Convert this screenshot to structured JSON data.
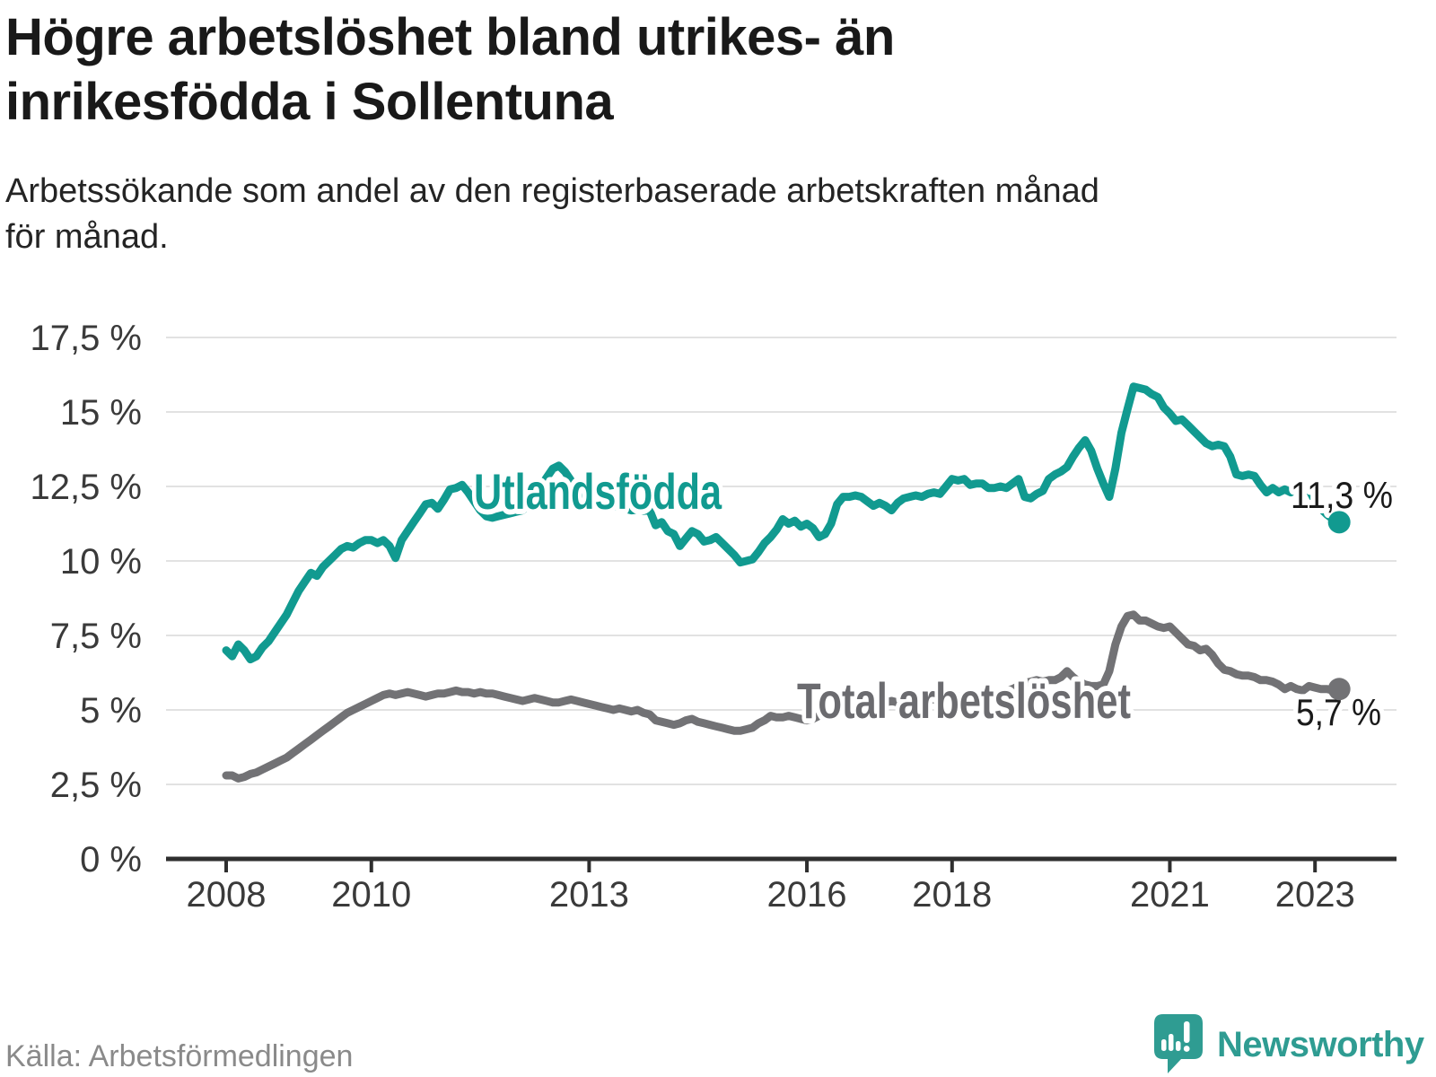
{
  "header": {
    "title_lines": [
      "Högre arbetslöshet bland utrikes- än",
      "inrikesfödda i Sollentuna"
    ],
    "subtitle_lines": [
      "Arbetssökande som andel av den registerbaserade arbetskraften månad",
      "för månad."
    ]
  },
  "footer": {
    "source": "Källa: Arbetsförmedlingen",
    "logo_text": "Newsworthy"
  },
  "chart_data": {
    "type": "line",
    "title": "Högre arbetslöshet bland utrikes- än inrikesfödda i Sollentuna",
    "subtitle": "Arbetssökande som andel av den registerbaserade arbetskraften månad för månad.",
    "source": "Källa: Arbetsförmedlingen",
    "unit": "%",
    "frequency": "monthly",
    "x_start": "2008-01",
    "x_end": "2023-05",
    "ylim": [
      0,
      17.5
    ],
    "grid": true,
    "legend_position": "inline-labels",
    "y_ticks": [
      {
        "value": 0,
        "label": "0 %"
      },
      {
        "value": 2.5,
        "label": "2,5 %"
      },
      {
        "value": 5,
        "label": "5 %"
      },
      {
        "value": 7.5,
        "label": "7,5 %"
      },
      {
        "value": 10,
        "label": "10 %"
      },
      {
        "value": 12.5,
        "label": "12,5 %"
      },
      {
        "value": 15,
        "label": "15 %"
      },
      {
        "value": 17.5,
        "label": "17,5 %"
      }
    ],
    "x_ticks": [
      {
        "year": 2008,
        "label": "2008"
      },
      {
        "year": 2010,
        "label": "2010"
      },
      {
        "year": 2013,
        "label": "2013"
      },
      {
        "year": 2016,
        "label": "2016"
      },
      {
        "year": 2018,
        "label": "2018"
      },
      {
        "year": 2021,
        "label": "2021"
      },
      {
        "year": 2023,
        "label": "2023"
      }
    ],
    "series": [
      {
        "name": "Utlandsfödda",
        "slug": "utlandsfodda",
        "color": "#119a90",
        "label_color": "#119a90",
        "end_value": 11.3,
        "end_label": "11,3 %",
        "values": [
          7.0,
          6.8,
          7.2,
          7.0,
          6.7,
          6.8,
          7.1,
          7.3,
          7.6,
          7.9,
          8.2,
          8.6,
          9.0,
          9.3,
          9.6,
          9.5,
          9.8,
          10.0,
          10.2,
          10.4,
          10.5,
          10.45,
          10.6,
          10.7,
          10.7,
          10.6,
          10.7,
          10.5,
          10.1,
          10.7,
          11.0,
          11.3,
          11.6,
          11.9,
          11.95,
          11.75,
          12.05,
          12.4,
          12.45,
          12.55,
          12.3,
          12.0,
          11.7,
          11.5,
          11.45,
          11.5,
          11.55,
          11.6,
          11.65,
          11.7,
          11.9,
          12.2,
          12.5,
          12.8,
          13.1,
          13.2,
          13.0,
          12.7,
          12.45,
          12.25,
          12.1,
          12.0,
          11.95,
          11.9,
          11.85,
          11.8,
          11.75,
          11.7,
          11.72,
          11.68,
          11.7,
          11.2,
          11.3,
          11.0,
          10.9,
          10.5,
          10.75,
          11.0,
          10.9,
          10.65,
          10.7,
          10.8,
          10.6,
          10.4,
          10.2,
          9.95,
          10.0,
          10.05,
          10.3,
          10.6,
          10.8,
          11.05,
          11.4,
          11.25,
          11.35,
          11.15,
          11.25,
          11.1,
          10.8,
          10.9,
          11.25,
          11.9,
          12.15,
          12.15,
          12.2,
          12.15,
          12.0,
          11.85,
          11.95,
          11.85,
          11.7,
          11.95,
          12.1,
          12.15,
          12.2,
          12.15,
          12.25,
          12.3,
          12.25,
          12.5,
          12.75,
          12.7,
          12.75,
          12.55,
          12.6,
          12.6,
          12.45,
          12.45,
          12.5,
          12.45,
          12.6,
          12.75,
          12.15,
          12.1,
          12.25,
          12.35,
          12.75,
          12.9,
          13.0,
          13.15,
          13.5,
          13.8,
          14.05,
          13.7,
          13.1,
          12.6,
          12.15,
          13.1,
          14.3,
          15.1,
          15.85,
          15.8,
          15.75,
          15.6,
          15.5,
          15.15,
          14.95,
          14.7,
          14.75,
          14.55,
          14.35,
          14.15,
          13.95,
          13.85,
          13.9,
          13.85,
          13.5,
          12.9,
          12.85,
          12.9,
          12.85,
          12.55,
          12.3,
          12.45,
          12.3,
          12.4,
          12.3,
          12.55,
          12.5,
          12.4,
          12.0,
          11.75,
          11.55,
          11.4,
          11.3
        ]
      },
      {
        "name": "Total arbetslöshet",
        "slug": "total-arbetsloshet",
        "color": "#727275",
        "label_color": "#6b6b6f",
        "end_value": 5.7,
        "end_label": "5,7 %",
        "values": [
          2.8,
          2.8,
          2.7,
          2.75,
          2.85,
          2.9,
          3.0,
          3.1,
          3.2,
          3.3,
          3.4,
          3.55,
          3.7,
          3.85,
          4.0,
          4.15,
          4.3,
          4.45,
          4.6,
          4.75,
          4.9,
          5.0,
          5.1,
          5.2,
          5.3,
          5.4,
          5.5,
          5.55,
          5.5,
          5.55,
          5.6,
          5.55,
          5.5,
          5.45,
          5.5,
          5.55,
          5.55,
          5.6,
          5.65,
          5.6,
          5.6,
          5.55,
          5.6,
          5.55,
          5.55,
          5.5,
          5.45,
          5.4,
          5.35,
          5.3,
          5.35,
          5.4,
          5.35,
          5.3,
          5.25,
          5.25,
          5.3,
          5.35,
          5.3,
          5.25,
          5.2,
          5.15,
          5.1,
          5.05,
          5.0,
          5.05,
          5.0,
          4.95,
          5.0,
          4.9,
          4.85,
          4.65,
          4.6,
          4.55,
          4.5,
          4.55,
          4.65,
          4.7,
          4.6,
          4.55,
          4.5,
          4.45,
          4.4,
          4.35,
          4.3,
          4.3,
          4.35,
          4.4,
          4.55,
          4.65,
          4.8,
          4.75,
          4.75,
          4.8,
          4.75,
          4.7,
          4.65,
          4.7,
          4.8,
          4.85,
          4.9,
          4.95,
          5.0,
          5.05,
          5.1,
          5.1,
          5.15,
          5.2,
          5.2,
          5.25,
          5.3,
          5.25,
          5.3,
          5.35,
          5.3,
          5.35,
          5.4,
          5.35,
          5.4,
          5.45,
          5.4,
          5.45,
          5.5,
          5.45,
          5.5,
          5.55,
          5.5,
          5.55,
          5.6,
          5.65,
          5.7,
          5.8,
          5.9,
          5.95,
          6.0,
          5.95,
          6.0,
          6.0,
          6.1,
          6.3,
          6.1,
          5.95,
          5.85,
          5.8,
          5.8,
          5.85,
          6.3,
          7.2,
          7.8,
          8.15,
          8.2,
          8.0,
          8.0,
          7.9,
          7.8,
          7.75,
          7.8,
          7.6,
          7.4,
          7.2,
          7.15,
          7.0,
          7.05,
          6.85,
          6.55,
          6.35,
          6.3,
          6.2,
          6.15,
          6.15,
          6.1,
          6.0,
          6.0,
          5.95,
          5.85,
          5.7,
          5.8,
          5.7,
          5.65,
          5.8,
          5.75,
          5.7,
          5.7,
          5.65,
          5.7
        ]
      }
    ],
    "style": {
      "axis_color": "#2f2f2f",
      "grid_color": "#e2e2e2",
      "tick_label_color": "#3a3a3a",
      "value_label_color": "#1a1a1a",
      "background": "#ffffff",
      "logo_color": "#2f9c92"
    }
  }
}
